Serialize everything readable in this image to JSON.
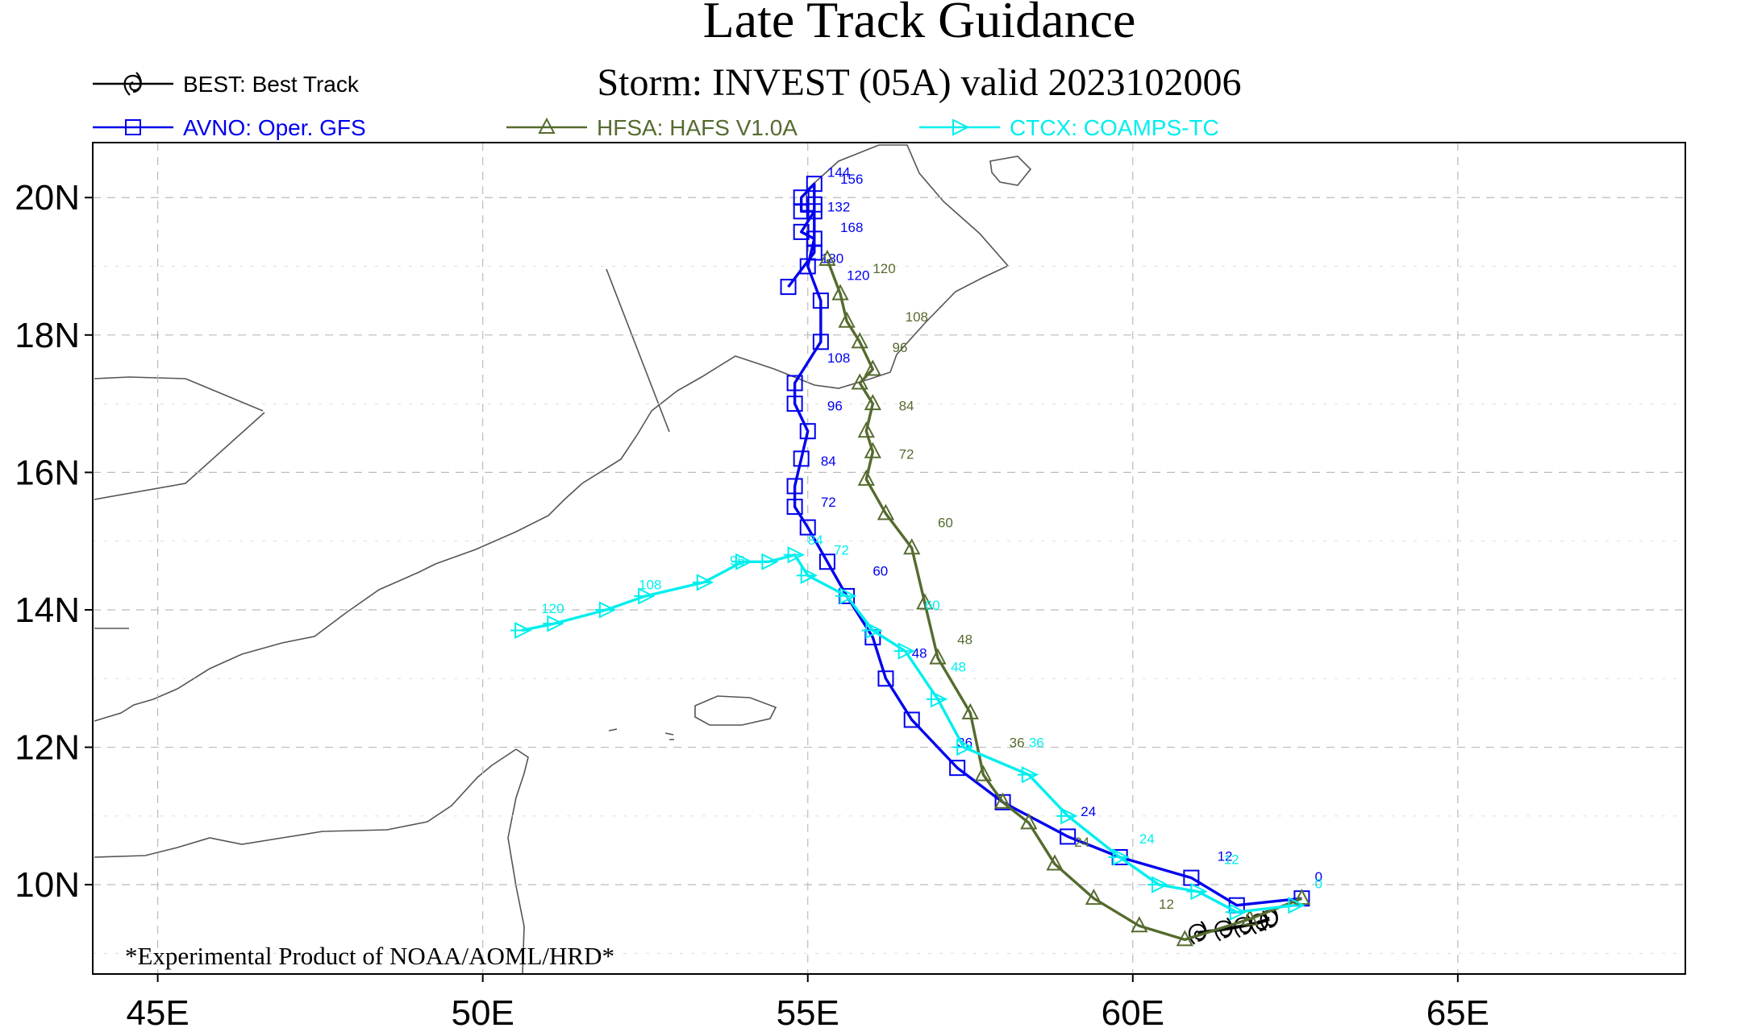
{
  "chart_data": {
    "type": "line",
    "title": "Late Track Guidance",
    "subtitle": "Storm: INVEST (05A) valid 2023102006",
    "footnote": "*Experimental Product of NOAA/AOML/HRD*",
    "xlim": [
      44,
      68.5
    ],
    "ylim": [
      8.7,
      20.8
    ],
    "x_ticks": [
      {
        "value": 45,
        "label": "45E"
      },
      {
        "value": 50,
        "label": "50E"
      },
      {
        "value": 55,
        "label": "55E"
      },
      {
        "value": 60,
        "label": "60E"
      },
      {
        "value": 65,
        "label": "65E"
      }
    ],
    "y_ticks": [
      {
        "value": 10,
        "label": "10N"
      },
      {
        "value": 12,
        "label": "12N"
      },
      {
        "value": 14,
        "label": "14N"
      },
      {
        "value": 16,
        "label": "16N"
      },
      {
        "value": 18,
        "label": "18N"
      },
      {
        "value": 20,
        "label": "20N"
      }
    ],
    "grid": true,
    "legend": [
      {
        "label": "BEST: Best Track",
        "color": "#000000",
        "marker": "cyclone"
      },
      {
        "label": "AVNO: Oper. GFS",
        "color": "#0000ee",
        "marker": "square"
      },
      {
        "label": "HFSA: HAFS V1.0A",
        "color": "#556b2f",
        "marker": "triangle"
      },
      {
        "label": "CTCX: COAMPS-TC",
        "color": "#00eeee",
        "marker": "arrow"
      }
    ],
    "series": [
      {
        "name": "BEST",
        "color": "#000000",
        "marker": "cyclone",
        "points": [
          [
            61.0,
            9.3
          ],
          [
            61.4,
            9.35
          ],
          [
            61.7,
            9.4
          ],
          [
            61.95,
            9.45
          ],
          [
            62.1,
            9.5
          ]
        ]
      },
      {
        "name": "AVNO",
        "color": "#0000ee",
        "marker": "square",
        "points": [
          [
            62.6,
            9.8
          ],
          [
            61.6,
            9.7
          ],
          [
            60.9,
            10.1
          ],
          [
            59.8,
            10.4
          ],
          [
            59.0,
            10.7
          ],
          [
            58.0,
            11.2
          ],
          [
            57.3,
            11.7
          ],
          [
            56.6,
            12.4
          ],
          [
            56.2,
            13.0
          ],
          [
            56.0,
            13.6
          ],
          [
            55.6,
            14.2
          ],
          [
            55.3,
            14.7
          ],
          [
            55.0,
            15.2
          ],
          [
            54.8,
            15.5
          ],
          [
            54.8,
            15.8
          ],
          [
            54.9,
            16.2
          ],
          [
            55.0,
            16.6
          ],
          [
            54.8,
            17.0
          ],
          [
            54.8,
            17.3
          ],
          [
            55.2,
            17.9
          ],
          [
            55.2,
            18.5
          ],
          [
            55.0,
            19.0
          ],
          [
            55.1,
            19.4
          ],
          [
            54.9,
            19.5
          ],
          [
            55.1,
            19.8
          ],
          [
            54.9,
            19.8
          ],
          [
            54.9,
            20.0
          ],
          [
            55.1,
            20.2
          ],
          [
            55.1,
            19.9
          ],
          [
            55.1,
            19.2
          ],
          [
            54.7,
            18.7
          ]
        ],
        "labels": [
          {
            "text": "0",
            "x": 62.8,
            "y": 10.05
          },
          {
            "text": "12",
            "x": 61.3,
            "y": 10.35
          },
          {
            "text": "24",
            "x": 59.2,
            "y": 11.0
          },
          {
            "text": "36",
            "x": 57.3,
            "y": 12.0
          },
          {
            "text": "48",
            "x": 56.6,
            "y": 13.3
          },
          {
            "text": "60",
            "x": 56.0,
            "y": 14.5
          },
          {
            "text": "72",
            "x": 55.2,
            "y": 15.5
          },
          {
            "text": "84",
            "x": 55.2,
            "y": 16.1
          },
          {
            "text": "96",
            "x": 55.3,
            "y": 16.9
          },
          {
            "text": "108",
            "x": 55.3,
            "y": 17.6
          },
          {
            "text": "120",
            "x": 55.6,
            "y": 18.8
          },
          {
            "text": "132",
            "x": 55.3,
            "y": 19.8
          },
          {
            "text": "144",
            "x": 55.3,
            "y": 20.3
          },
          {
            "text": "156",
            "x": 55.5,
            "y": 20.2
          },
          {
            "text": "168",
            "x": 55.5,
            "y": 19.5
          },
          {
            "text": "180",
            "x": 55.2,
            "y": 19.05
          }
        ]
      },
      {
        "name": "HFSA",
        "color": "#556b2f",
        "marker": "triangle",
        "points": [
          [
            62.6,
            9.8
          ],
          [
            61.8,
            9.5
          ],
          [
            60.8,
            9.2
          ],
          [
            60.1,
            9.4
          ],
          [
            59.4,
            9.8
          ],
          [
            58.8,
            10.3
          ],
          [
            58.4,
            10.9
          ],
          [
            58.0,
            11.2
          ],
          [
            57.7,
            11.6
          ],
          [
            57.5,
            12.5
          ],
          [
            57.0,
            13.3
          ],
          [
            56.8,
            14.1
          ],
          [
            56.6,
            14.9
          ],
          [
            56.2,
            15.4
          ],
          [
            55.9,
            15.9
          ],
          [
            56.0,
            16.3
          ],
          [
            55.9,
            16.6
          ],
          [
            56.0,
            17.0
          ],
          [
            55.8,
            17.3
          ],
          [
            56.0,
            17.5
          ],
          [
            55.8,
            17.9
          ],
          [
            55.6,
            18.2
          ],
          [
            55.5,
            18.6
          ],
          [
            55.3,
            19.1
          ]
        ],
        "labels": [
          {
            "text": "12",
            "x": 60.4,
            "y": 9.65
          },
          {
            "text": "24",
            "x": 59.1,
            "y": 10.55
          },
          {
            "text": "36",
            "x": 58.1,
            "y": 12.0
          },
          {
            "text": "48",
            "x": 57.3,
            "y": 13.5
          },
          {
            "text": "60",
            "x": 57.0,
            "y": 15.2
          },
          {
            "text": "72",
            "x": 56.4,
            "y": 16.2
          },
          {
            "text": "84",
            "x": 56.4,
            "y": 16.9
          },
          {
            "text": "96",
            "x": 56.3,
            "y": 17.75
          },
          {
            "text": "108",
            "x": 56.5,
            "y": 18.2
          },
          {
            "text": "120",
            "x": 56.0,
            "y": 18.9
          }
        ]
      },
      {
        "name": "CTCX",
        "color": "#00eeee",
        "marker": "arrow",
        "points": [
          [
            62.5,
            9.7
          ],
          [
            61.6,
            9.6
          ],
          [
            61.0,
            9.9
          ],
          [
            60.4,
            10.0
          ],
          [
            59.8,
            10.4
          ],
          [
            59.0,
            11.0
          ],
          [
            58.4,
            11.6
          ],
          [
            57.4,
            12.0
          ],
          [
            57.0,
            12.7
          ],
          [
            56.5,
            13.4
          ],
          [
            56.0,
            13.7
          ],
          [
            55.6,
            14.2
          ],
          [
            55.0,
            14.5
          ],
          [
            54.8,
            14.8
          ],
          [
            54.4,
            14.7
          ],
          [
            54.0,
            14.7
          ],
          [
            53.4,
            14.4
          ],
          [
            52.5,
            14.2
          ],
          [
            51.9,
            14.0
          ],
          [
            51.1,
            13.8
          ],
          [
            50.6,
            13.7
          ]
        ],
        "labels": [
          {
            "text": "0",
            "x": 62.8,
            "y": 9.95
          },
          {
            "text": "12",
            "x": 61.4,
            "y": 10.3
          },
          {
            "text": "24",
            "x": 60.1,
            "y": 10.6
          },
          {
            "text": "36",
            "x": 58.4,
            "y": 12.0
          },
          {
            "text": "48",
            "x": 57.2,
            "y": 13.1
          },
          {
            "text": "60",
            "x": 56.8,
            "y": 14.0
          },
          {
            "text": "72",
            "x": 55.4,
            "y": 14.8
          },
          {
            "text": "84",
            "x": 55.0,
            "y": 14.95
          },
          {
            "text": "96",
            "x": 53.8,
            "y": 14.65
          },
          {
            "text": "108",
            "x": 52.4,
            "y": 14.3
          },
          {
            "text": "120",
            "x": 50.9,
            "y": 13.95
          }
        ]
      }
    ]
  }
}
